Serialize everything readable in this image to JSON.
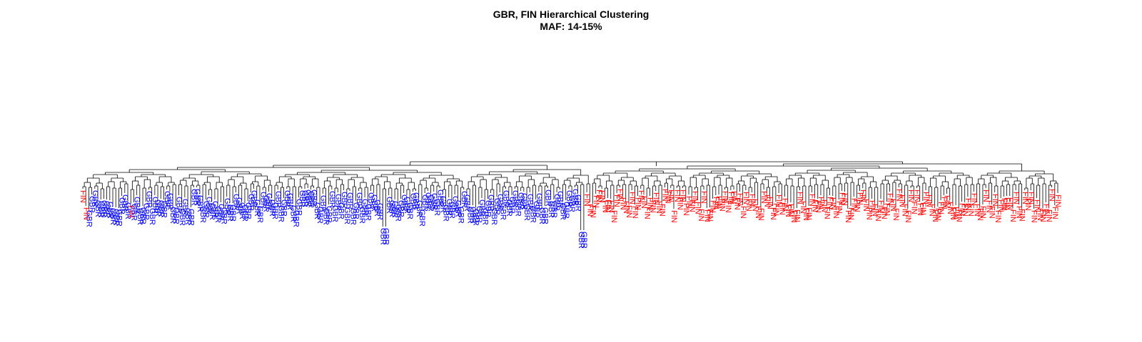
{
  "chart_data": {
    "type": "dendrogram",
    "title": "GBR, FIN Hierarchical Clustering",
    "subtitle": "MAF: 14-15%",
    "colors": {
      "GBR": "#0000ff",
      "FIN": "#ff0000",
      "branch": "#000000"
    },
    "labels": [
      "FIN",
      "FIN",
      "GBR",
      "GBR",
      "GBR",
      "GBR",
      "GBR",
      "GBR",
      "GBR",
      "GBR",
      "GBR",
      "GBR",
      "GBR",
      "GBR",
      "GBR",
      "GBR",
      "FIN",
      "GBR",
      "GBR",
      "GBR",
      "GBR",
      "GBR",
      "GBR",
      "GBR",
      "GBR",
      "GBR",
      "GBR",
      "GBR",
      "GBR",
      "GBR",
      "GBR",
      "GBR",
      "GBR",
      "GBR",
      "GBR",
      "GBR",
      "GBR",
      "GBR",
      "GBR",
      "GBR",
      "GBR",
      "GBR",
      "GBR",
      "GBR",
      "GBR",
      "GBR",
      "GBR",
      "GBR",
      "GBR",
      "GBR",
      "GBR",
      "GBR",
      "GBR",
      "GBR",
      "GBR",
      "GBR",
      "GBR",
      "GBR",
      "GBR",
      "GBR",
      "GBR",
      "GBR",
      "GBR",
      "GBR",
      "GBR",
      "GBR",
      "GBR",
      "GBR",
      "GBR",
      "GBR",
      "GBR",
      "GBR",
      "GBR",
      "GBR",
      "GBR",
      "GBR",
      "GBR",
      "GBR",
      "GBR",
      "GBR",
      "GBR",
      "GBR",
      "GBR",
      "GBR",
      "GBR",
      "GBR",
      "GBR",
      "GBR",
      "GBR",
      "GBR",
      "GBR",
      "GBR",
      "GBR",
      "GBR",
      "GBR",
      "GBR",
      "GBR",
      "GBR",
      "GBR",
      "GBR",
      "GBR",
      "GBR",
      "GBR",
      "GBR",
      "GBR",
      "GBR",
      "GBR",
      "GBR",
      "GBR",
      "GBR",
      "GBR",
      "GBR",
      "GBR",
      "GBR",
      "GBR",
      "GBR",
      "GBR",
      "GBR",
      "GBR",
      "GBR",
      "GBR",
      "GBR",
      "GBR",
      "GBR",
      "GBR",
      "GBR",
      "GBR",
      "GBR",
      "GBR",
      "GBR",
      "GBR",
      "GBR",
      "GBR",
      "GBR",
      "GBR",
      "GBR",
      "GBR",
      "GBR",
      "GBR",
      "GBR",
      "GBR",
      "GBR",
      "GBR",
      "GBR",
      "GBR",
      "GBR",
      "GBR",
      "GBR",
      "GBR",
      "GBR",
      "GBR",
      "GBR",
      "GBR",
      "GBR",
      "GBR",
      "GBR",
      "GBR",
      "GBR",
      "GBR",
      "GBR",
      "GBR",
      "GBR",
      "GBR",
      "GBR",
      "GBR",
      "GBR",
      "GBR",
      "GBR",
      "FIN",
      "FIN",
      "FIN",
      "FIN",
      "FIN",
      "FIN",
      "FIN",
      "FIN",
      "FIN",
      "FIN",
      "FIN",
      "FIN",
      "FIN",
      "FIN",
      "FIN",
      "FIN",
      "FIN",
      "FIN",
      "FIN",
      "FIN",
      "FIN",
      "FIN",
      "FIN",
      "FIN",
      "FIN",
      "FIN",
      "FIN",
      "FIN",
      "FIN",
      "FIN",
      "FIN",
      "FIN",
      "FIN",
      "FIN",
      "FIN",
      "FIN",
      "FIN",
      "FIN",
      "FIN",
      "FIN",
      "FIN",
      "FIN",
      "FIN",
      "FIN",
      "FIN",
      "FIN",
      "FIN",
      "FIN",
      "FIN",
      "FIN",
      "FIN",
      "FIN",
      "FIN",
      "FIN",
      "FIN",
      "FIN",
      "FIN",
      "FIN",
      "FIN",
      "FIN",
      "FIN",
      "FIN",
      "FIN",
      "FIN",
      "FIN",
      "FIN",
      "FIN",
      "FIN",
      "FIN",
      "FIN",
      "FIN",
      "FIN",
      "FIN",
      "FIN",
      "FIN",
      "FIN",
      "FIN",
      "FIN",
      "FIN",
      "FIN",
      "FIN",
      "FIN",
      "FIN",
      "FIN",
      "FIN",
      "FIN",
      "FIN",
      "FIN",
      "FIN",
      "FIN",
      "FIN",
      "FIN",
      "FIN",
      "FIN",
      "FIN",
      "FIN",
      "FIN",
      "FIN",
      "FIN",
      "FIN",
      "FIN",
      "FIN",
      "FIN",
      "FIN",
      "FIN",
      "FIN",
      "FIN",
      "FIN",
      "FIN",
      "FIN",
      "FIN",
      "FIN",
      "FIN",
      "FIN",
      "FIN",
      "FIN",
      "FIN",
      "FIN",
      "FIN",
      "FIN",
      "FIN",
      "FIN",
      "FIN",
      "FIN",
      "FIN",
      "FIN",
      "FIN",
      "FIN",
      "FIN",
      "FIN",
      "FIN",
      "FIN",
      "FIN",
      "FIN",
      "FIN",
      "FIN",
      "FIN",
      "FIN",
      "FIN",
      "FIN",
      "FIN",
      "FIN",
      "FIN",
      "FIN",
      "FIN",
      "FIN",
      "FIN",
      "FIN",
      "FIN",
      "FIN",
      "FIN",
      "FIN",
      "FIN",
      "FIN",
      "FIN",
      "FIN",
      "FIN",
      "FIN"
    ]
  }
}
